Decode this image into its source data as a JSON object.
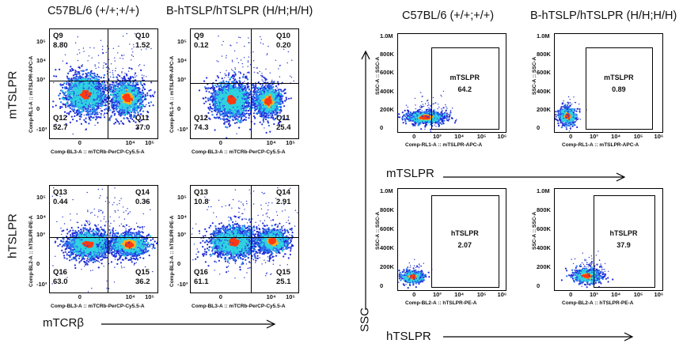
{
  "headers": {
    "left_wt": "C57BL/6 (+/+;+/+)",
    "left_ki": "B-hTSLP/hTSLPR (H/H;H/H)",
    "right_wt": "C57BL/6 (+/+;+/+)",
    "right_ki": "B-hTSLP/hTSLPR (H/H;H/H)"
  },
  "row_labels": {
    "top": "mTSLPR",
    "bottom": "hTSLPR"
  },
  "axis_captions": {
    "left_x": "mTCRβ",
    "ssc": "SSC",
    "right_top_x": "mTSLPR",
    "right_bottom_x": "hTSLPR"
  },
  "quad_plots": [
    {
      "id": "m-wt",
      "ylabel": "Comp-RL1-A :: mTSLPR-APC-A",
      "xlabel": "Comp-BL3-A :: mTCRb-PerCP-Cy5.5-A",
      "quadrants": [
        {
          "name": "Q9",
          "value": "8.80"
        },
        {
          "name": "Q10",
          "value": "1.52"
        },
        {
          "name": "Q11",
          "value": "37.0"
        },
        {
          "name": "Q12",
          "value": "52.7"
        }
      ]
    },
    {
      "id": "m-ki",
      "ylabel": "Comp-RL1-A :: mTSLPR-APC-A",
      "xlabel": "Comp-BL3-A :: mTCRb-PerCP-Cy5.5-A",
      "quadrants": [
        {
          "name": "Q9",
          "value": "0.12"
        },
        {
          "name": "Q10",
          "value": "0.20"
        },
        {
          "name": "Q11",
          "value": "25.4"
        },
        {
          "name": "Q12",
          "value": "74.3"
        }
      ]
    },
    {
      "id": "h-wt",
      "ylabel": "Comp-BL2-A :: hTSLPR-PE-A",
      "xlabel": "Comp-BL3-A :: mTCRb-PerCP-Cy5.5-A",
      "quadrants": [
        {
          "name": "Q13",
          "value": "0.44"
        },
        {
          "name": "Q14",
          "value": "0.36"
        },
        {
          "name": "Q15",
          "value": "36.2"
        },
        {
          "name": "Q16",
          "value": "63.0"
        }
      ]
    },
    {
      "id": "h-ki",
      "ylabel": "Comp-BL2-A :: hTSLPR-PE-A",
      "xlabel": "Comp-BL3-A :: mTCRb-PerCP-Cy5.5-A",
      "quadrants": [
        {
          "name": "Q13",
          "value": "10.8"
        },
        {
          "name": "Q14",
          "value": "2.91"
        },
        {
          "name": "Q15",
          "value": "25.1"
        },
        {
          "name": "Q16",
          "value": "61.1"
        }
      ]
    }
  ],
  "quad_ticks": {
    "y": [
      "10⁵",
      "10⁴",
      "10³",
      "0",
      "-10³"
    ],
    "x": [
      "0",
      "10⁴",
      "10⁵"
    ]
  },
  "gate_plots": [
    {
      "id": "gm-wt",
      "ylabel": "SSC-A :: SSC-A",
      "xlabel": "Comp-RL1-A :: mTSLPR-APC-A",
      "gate_name": "mTSLPR",
      "gate_value": "64.2"
    },
    {
      "id": "gm-ki",
      "ylabel": "SSC-A :: SSC-A",
      "xlabel": "Comp-RL1-A :: mTSLPR-APC-A",
      "gate_name": "mTSLPR",
      "gate_value": "0.89"
    },
    {
      "id": "gh-wt",
      "ylabel": "SSC-A :: SSC-A",
      "xlabel": "Comp-BL2-A :: hTSLPR-PE-A",
      "gate_name": "hTSLPR",
      "gate_value": "2.07"
    },
    {
      "id": "gh-ki",
      "ylabel": "SSC-A :: SSC-A",
      "xlabel": "Comp-BL2-A :: hTSLPR-PE-A",
      "gate_name": "hTSLPR",
      "gate_value": "37.9"
    }
  ],
  "gate_ticks": {
    "y": [
      "1.0M",
      "800K",
      "600K",
      "400K",
      "200K",
      "0"
    ],
    "x": [
      "0",
      "10³",
      "10⁴",
      "10⁵",
      "10⁶"
    ]
  }
}
